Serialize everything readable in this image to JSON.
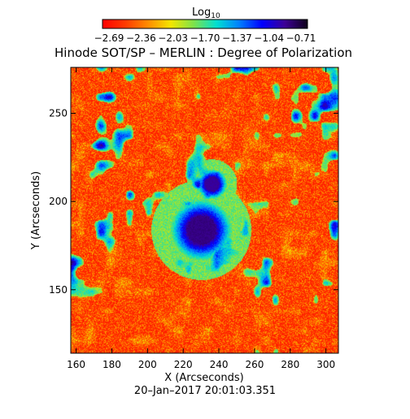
{
  "chart_data": {
    "type": "heatmap",
    "title": "Hinode SOT/SP – MERLIN : Degree of Polarization",
    "xlabel": "X (Arcseconds)",
    "ylabel": "Y (Arcseconds)",
    "date": "20–Jan–2017 20:01:03.351",
    "xlim": [
      157,
      307
    ],
    "ylim": [
      114,
      276
    ],
    "xticks": [
      160,
      180,
      200,
      220,
      240,
      260,
      280,
      300
    ],
    "yticks": [
      150,
      200,
      250
    ],
    "colorbar": {
      "label": "Log",
      "label_sub": "10",
      "scale": "log10",
      "range": [
        -2.85,
        -0.55
      ],
      "ticks": [
        "−2.69",
        "−2.36",
        "−2.03",
        "−1.70",
        "−1.37",
        "−1.04",
        "−0.71"
      ],
      "colors": [
        "#ff0000",
        "#ff3a00",
        "#ff8c00",
        "#f3e600",
        "#7ee24a",
        "#00e0d0",
        "#0080ff",
        "#0000ff",
        "#3c0096",
        "#0d0018"
      ]
    },
    "features": [
      {
        "name": "sunspot-umbra",
        "x": 230,
        "y": 184,
        "r": 8,
        "value": -0.8
      },
      {
        "name": "pore",
        "x": 236,
        "y": 210,
        "r": 4,
        "value": -0.85
      }
    ]
  }
}
